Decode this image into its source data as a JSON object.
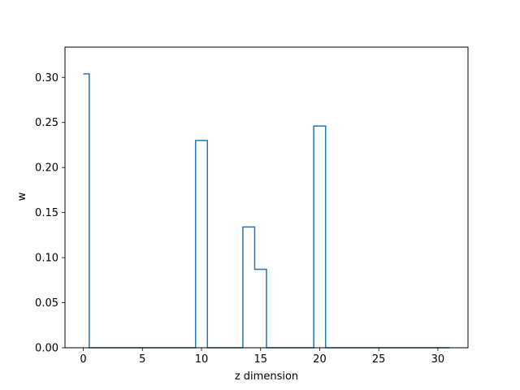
{
  "chart_data": {
    "type": "line",
    "drawstyle": "steps-mid",
    "title": "",
    "xlabel": "z dimension",
    "ylabel": "w",
    "xlim": [
      -1.55,
      32.55
    ],
    "ylim": [
      0,
      0.3336
    ],
    "xticks": [
      0,
      5,
      10,
      15,
      20,
      25,
      30
    ],
    "xtick_labels": [
      "0",
      "5",
      "10",
      "15",
      "20",
      "25",
      "30"
    ],
    "yticks": [
      0.0,
      0.05,
      0.1,
      0.15,
      0.2,
      0.25,
      0.3
    ],
    "ytick_labels": [
      "0.00",
      "0.05",
      "0.10",
      "0.15",
      "0.20",
      "0.25",
      "0.30"
    ],
    "grid": false,
    "legend": "none",
    "line_color": "#1f77b4",
    "series": [
      {
        "x": [
          0,
          1,
          2,
          3,
          4,
          5,
          6,
          7,
          8,
          9,
          10,
          11,
          12,
          13,
          14,
          15,
          16,
          17,
          18,
          19,
          20,
          21,
          22,
          23,
          24,
          25,
          26,
          27,
          28,
          29,
          30,
          31
        ],
        "values": [
          0.304,
          0,
          0,
          0,
          0,
          0,
          0,
          0,
          0,
          0,
          0.23,
          0,
          0,
          0,
          0.134,
          0.087,
          0,
          0,
          0,
          0,
          0.246,
          0,
          0,
          0,
          0,
          0,
          0,
          0,
          0,
          0,
          0,
          0
        ]
      }
    ]
  }
}
